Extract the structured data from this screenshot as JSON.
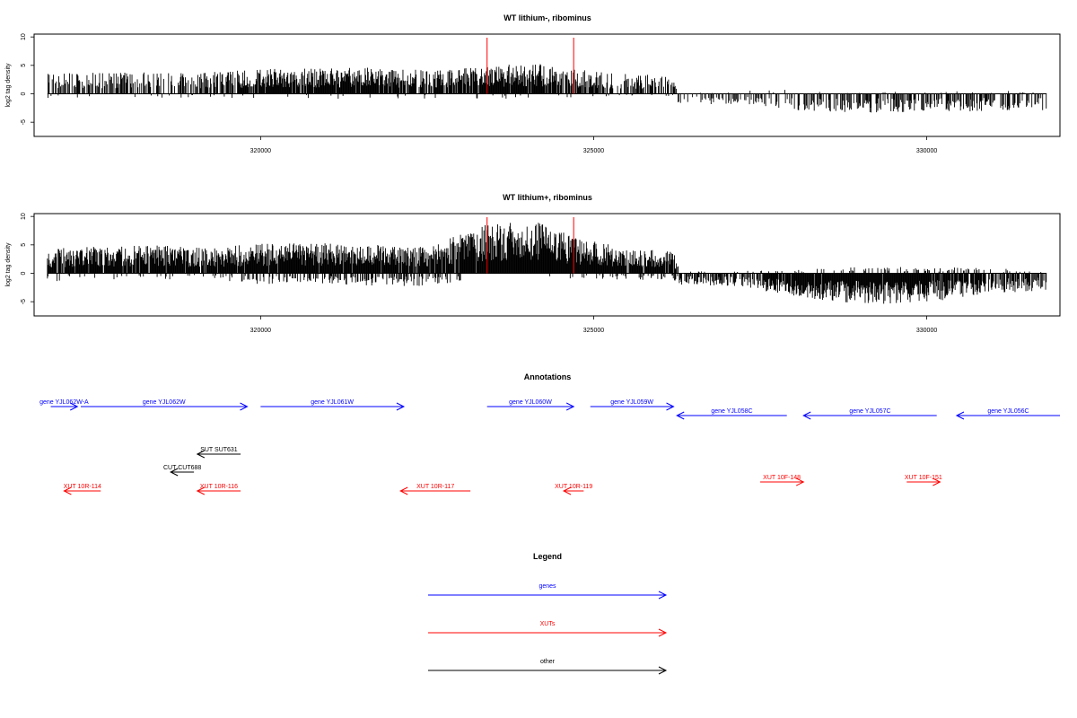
{
  "chart_data": [
    {
      "type": "bar",
      "title": "WT lithium-, ribominus",
      "ylabel": "log2 tag density",
      "xlim": [
        316600,
        332000
      ],
      "ylim": [
        -7.5,
        10.5
      ],
      "yticks": [
        -5,
        0,
        5,
        10
      ],
      "xticks": [
        320000,
        325000,
        330000
      ],
      "markers": [
        323400,
        324700
      ],
      "bar_color": "#000000",
      "marker_color": "#ff0000",
      "grid": false,
      "density_profile": {
        "x": [
          316800,
          317600,
          318400,
          319200,
          320000,
          320800,
          321600,
          322500,
          323400,
          324050,
          324700,
          325500,
          326200,
          326300,
          327200,
          328000,
          329000,
          330000,
          331000,
          331800
        ],
        "pos_height": [
          2.5,
          2.6,
          2.6,
          2.6,
          3.0,
          3.1,
          3.2,
          2.9,
          3.3,
          3.8,
          3.1,
          2.4,
          2.2,
          0,
          0.4,
          0.6,
          0.2,
          0.3,
          0.4,
          0.2
        ],
        "neg_height": [
          0.6,
          0.6,
          0.5,
          0.6,
          0.6,
          0.6,
          0.6,
          0.6,
          0.6,
          0.7,
          0.6,
          0.4,
          0.4,
          1.4,
          1.2,
          2.0,
          2.3,
          2.2,
          2.1,
          2.0
        ],
        "pos_density": [
          0.55,
          0.58,
          0.55,
          0.5,
          0.9,
          0.9,
          0.88,
          0.7,
          0.95,
          0.95,
          0.7,
          0.6,
          0.55,
          0,
          0.05,
          0.08,
          0.05,
          0.05,
          0.05,
          0.04
        ],
        "neg_density": [
          0.04,
          0.04,
          0.03,
          0.05,
          0.04,
          0.04,
          0.05,
          0.05,
          0.05,
          0.05,
          0.05,
          0.04,
          0.04,
          0.3,
          0.25,
          0.45,
          0.5,
          0.5,
          0.45,
          0.45
        ]
      }
    },
    {
      "type": "bar",
      "title": "WT lithium+, ribominus",
      "ylabel": "log2 tag density",
      "xlim": [
        316600,
        332000
      ],
      "ylim": [
        -7.5,
        10.5
      ],
      "yticks": [
        -5,
        0,
        5,
        10
      ],
      "xticks": [
        320000,
        325000,
        330000
      ],
      "markers": [
        323400,
        324700
      ],
      "bar_color": "#000000",
      "marker_color": "#ff0000",
      "grid": false,
      "density_profile": {
        "x": [
          316800,
          317600,
          318400,
          319200,
          320000,
          320800,
          321600,
          322500,
          323400,
          324050,
          324700,
          325500,
          326200,
          326300,
          327200,
          328000,
          329000,
          330000,
          331000,
          331800
        ],
        "pos_height": [
          3.0,
          3.3,
          3.4,
          3.1,
          3.6,
          3.8,
          3.6,
          3.2,
          6.0,
          6.5,
          4.5,
          3.0,
          2.8,
          0.2,
          0.3,
          0.4,
          0.8,
          0.8,
          0.6,
          0.4
        ],
        "neg_height": [
          1.0,
          0.8,
          0.7,
          0.9,
          1.3,
          1.2,
          1.5,
          1.6,
          0.5,
          0.5,
          0.7,
          0.8,
          0.8,
          1.4,
          1.6,
          2.8,
          3.8,
          3.5,
          2.6,
          2.0
        ],
        "pos_density": [
          0.92,
          0.95,
          0.95,
          0.95,
          0.98,
          0.98,
          0.98,
          0.9,
          1.0,
          1.0,
          1.0,
          0.95,
          0.9,
          0.05,
          0.08,
          0.12,
          0.2,
          0.2,
          0.15,
          0.1
        ],
        "neg_density": [
          0.1,
          0.12,
          0.1,
          0.15,
          0.25,
          0.3,
          0.35,
          0.4,
          0.02,
          0.02,
          0.1,
          0.2,
          0.25,
          0.7,
          0.6,
          0.95,
          1.0,
          0.95,
          0.7,
          0.6
        ]
      }
    }
  ],
  "annotations": {
    "title": "Annotations",
    "features": [
      {
        "label": "gene YJL062W-A",
        "strand": "+",
        "start": 316850,
        "end": 317250,
        "row": 0,
        "color": "#0000ff"
      },
      {
        "label": "gene YJL062W",
        "strand": "+",
        "start": 317300,
        "end": 319800,
        "row": 0,
        "color": "#0000ff"
      },
      {
        "label": "gene YJL061W",
        "strand": "+",
        "start": 320000,
        "end": 322150,
        "row": 0,
        "color": "#0000ff"
      },
      {
        "label": "gene YJL060W",
        "strand": "+",
        "start": 323400,
        "end": 324700,
        "row": 0,
        "color": "#0000ff"
      },
      {
        "label": "gene YJL059W",
        "strand": "+",
        "start": 324950,
        "end": 326200,
        "row": 0,
        "color": "#0000ff"
      },
      {
        "label": "gene YJL058C",
        "strand": "-",
        "start": 326250,
        "end": 327900,
        "row": 1,
        "color": "#0000ff"
      },
      {
        "label": "gene YJL057C",
        "strand": "-",
        "start": 328150,
        "end": 330150,
        "row": 1,
        "color": "#0000ff"
      },
      {
        "label": "gene YJL056C",
        "strand": "-",
        "start": 330450,
        "end": 332000,
        "row": 1,
        "color": "#0000ff"
      },
      {
        "label": "SUT SUT631",
        "strand": "-",
        "start": 319050,
        "end": 319700,
        "row": 2,
        "color": "#000000"
      },
      {
        "label": "CUT CUT688",
        "strand": "-",
        "start": 318650,
        "end": 319000,
        "row": 3,
        "color": "#000000"
      },
      {
        "label": "XUT 10F-148",
        "strand": "+",
        "start": 327500,
        "end": 328150,
        "row": 4,
        "color": "#ff0000"
      },
      {
        "label": "XUT 10F-151",
        "strand": "+",
        "start": 329700,
        "end": 330200,
        "row": 4,
        "color": "#ff0000"
      },
      {
        "label": "XUT 10R-114",
        "strand": "-",
        "start": 317050,
        "end": 317600,
        "row": 5,
        "color": "#ff0000"
      },
      {
        "label": "XUT 10R-116",
        "strand": "-",
        "start": 319050,
        "end": 319700,
        "row": 5,
        "color": "#ff0000"
      },
      {
        "label": "XUT 10R-117",
        "strand": "-",
        "start": 322100,
        "end": 323150,
        "row": 5,
        "color": "#ff0000"
      },
      {
        "label": "XUT 10R-119",
        "strand": "-",
        "start": 324550,
        "end": 324850,
        "row": 5,
        "color": "#ff0000"
      }
    ]
  },
  "legend": {
    "title": "Legend",
    "items": [
      {
        "label": "genes",
        "color": "#0000ff"
      },
      {
        "label": "XUTs",
        "color": "#ff0000"
      },
      {
        "label": "other",
        "color": "#000000"
      }
    ]
  }
}
